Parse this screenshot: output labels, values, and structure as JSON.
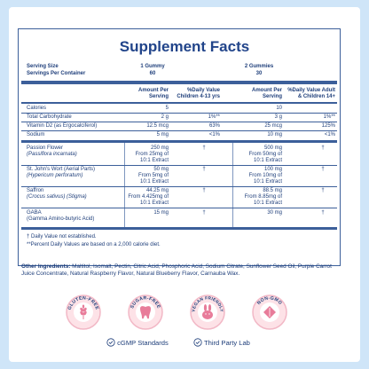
{
  "colors": {
    "background": "#cfe5f8",
    "accent": "#21448a",
    "badge_ring": "#f2b8c6",
    "badge_fill": "#fde2e7",
    "icon_pink": "#e87c9a"
  },
  "title": "Supplement Facts",
  "serving": {
    "size_label": "Serving Size",
    "per_container_label": "Servings Per Container",
    "col1_size": "1 Gummy",
    "col1_per": "60",
    "col2_size": "2 Gummies",
    "col2_per": "30"
  },
  "headers": {
    "amt1_line1": "Amount Per",
    "amt1_line2": "Serving",
    "dv1_line1": "%Daily Value",
    "dv1_line2": "Children 4-13 yrs",
    "amt2_line1": "Amount Per",
    "amt2_line2": "Serving",
    "dv2_line1": "%Daily Value Adult",
    "dv2_line2": "& Children 14+"
  },
  "rows": [
    {
      "name": "Calories",
      "amt1": "5",
      "dv1": "",
      "amt2": "10",
      "dv2": ""
    },
    {
      "name": "Total Carbohydrate",
      "amt1": "2 g",
      "dv1": "1%**",
      "amt2": "3 g",
      "dv2": "1%**"
    },
    {
      "name": "Vitamin D2 (as Ergocalciferol)",
      "amt1": "12.5 mcg",
      "dv1": "63%",
      "amt2": "25 mcg",
      "dv2": "125%"
    },
    {
      "name": "Sodium",
      "amt1": "5 mg",
      "dv1": "<1%",
      "amt2": "10 mg",
      "dv2": "<1%"
    }
  ],
  "herbs": [
    {
      "name": "Passion Flower",
      "sub": "(Passiflora incarnata)",
      "amt1_a": "250 mg",
      "amt1_b": "From 25mg of",
      "amt1_c": "10:1 Extract",
      "dv1": "†",
      "amt2_a": "500 mg",
      "amt2_b": "From 50mg of",
      "amt2_c": "10:1 Extract",
      "dv2": "†"
    },
    {
      "name": "St. John's Wort (Aerial Parts)",
      "sub": "(Hypericum perforatum)",
      "amt1_a": "50 mg",
      "amt1_b": "From 5mg of",
      "amt1_c": "10:1 Extract",
      "dv1": "†",
      "amt2_a": "100 mg",
      "amt2_b": "From 10mg of",
      "amt2_c": "10:1 Extract",
      "dv2": "†"
    },
    {
      "name": "Saffron",
      "sub": "(Crocus sativus) (Stigma)",
      "amt1_a": "44.25 mg",
      "amt1_b": "From 4.425mg of",
      "amt1_c": "10:1 Extract",
      "dv1": "†",
      "amt2_a": "88.5 mg",
      "amt2_b": "From 8.85mg of",
      "amt2_c": "10:1 Extract",
      "dv2": "†"
    },
    {
      "name": "GABA",
      "sub": "(Gamma Amino-butyric Acid)",
      "amt1_a": "15 mg",
      "amt1_b": "",
      "amt1_c": "",
      "dv1": "†",
      "amt2_a": "30 mg",
      "amt2_b": "",
      "amt2_c": "",
      "dv2": "†"
    }
  ],
  "footnotes": {
    "dagger": "† Daily Value not established.",
    "percent": "**Percent Daily Values are based on a 2,000 calorie diet."
  },
  "ingredients": {
    "label": "Other Ingredients:",
    "text": " Maltitol, Isomalt, Pectin, Citric Acid, Phosphoric Acid, Sodium Citrate, Sunflower Seed Oil, Purple Carrot Juice Concentrate, Natural Raspberry Flavor, Natural Blueberry Flavor, Carnauba Wax."
  },
  "badges": [
    {
      "text": "GLUTEN-FREE",
      "icon": "wheat-icon"
    },
    {
      "text": "SUGAR-FREE",
      "icon": "tooth-icon"
    },
    {
      "text": "VEGAN FRIENDLY",
      "icon": "bunny-icon"
    },
    {
      "text": "NON-GMO",
      "icon": "leaf-icon"
    }
  ],
  "features": [
    {
      "label": "cGMP Standards",
      "icon": "check-circle-icon"
    },
    {
      "label": "Third Party Lab",
      "icon": "check-circle-icon"
    }
  ]
}
